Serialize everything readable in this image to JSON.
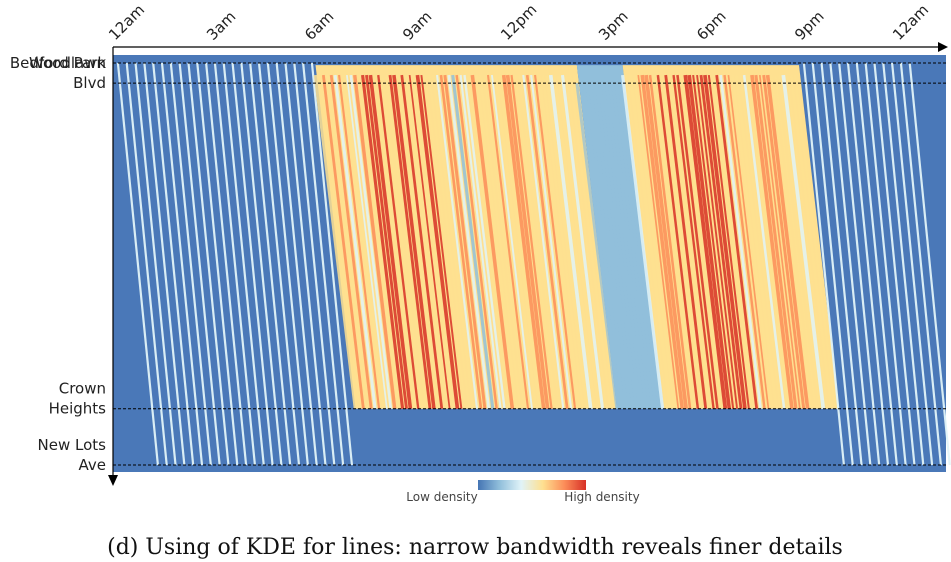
{
  "chart_data": {
    "type": "heatmap",
    "title": "",
    "xlabel": "",
    "ylabel": "",
    "x_tick_labels": [
      "12am",
      "3am",
      "6am",
      "9am",
      "12pm",
      "3pm",
      "6pm",
      "9pm",
      "12am"
    ],
    "x_tick_hours": [
      0,
      3,
      6,
      9,
      12,
      15,
      18,
      21,
      24
    ],
    "xlim_hours": [
      0,
      25.5
    ],
    "stations": [
      {
        "name_lines": [
          "Woodlawn"
        ],
        "position": 0.0
      },
      {
        "name_lines": [
          "Bedford Park",
          "Blvd"
        ],
        "position": 0.05
      },
      {
        "name_lines": [
          "Crown",
          "Heights"
        ],
        "position": 0.86
      },
      {
        "name_lines": [
          "New Lots",
          "Ave"
        ],
        "position": 1.0
      }
    ],
    "colorscale": {
      "low_label": "Low density",
      "high_label": "High density",
      "colors": [
        "#4575b4",
        "#91bfdb",
        "#e0f3f8",
        "#fee090",
        "#fc8d59",
        "#d73027"
      ]
    },
    "density_phases": [
      {
        "start_hour": 0,
        "end_hour": 6.2,
        "level": "low",
        "pattern": "sparse individual trips"
      },
      {
        "start_hour": 6.2,
        "end_hour": 14.2,
        "level": "high",
        "peak_hour": 8.5
      },
      {
        "start_hour": 14.2,
        "end_hour": 15.6,
        "level": "medium"
      },
      {
        "start_hour": 15.6,
        "end_hour": 21.0,
        "level": "high",
        "peak_hour": 17.5
      },
      {
        "start_hour": 21.0,
        "end_hour": 24.5,
        "level": "low",
        "pattern": "sparse individual trips"
      }
    ],
    "background_color": "#4a78b8"
  },
  "caption": "(d) Using of KDE for lines: narrow bandwidth reveals finer details"
}
